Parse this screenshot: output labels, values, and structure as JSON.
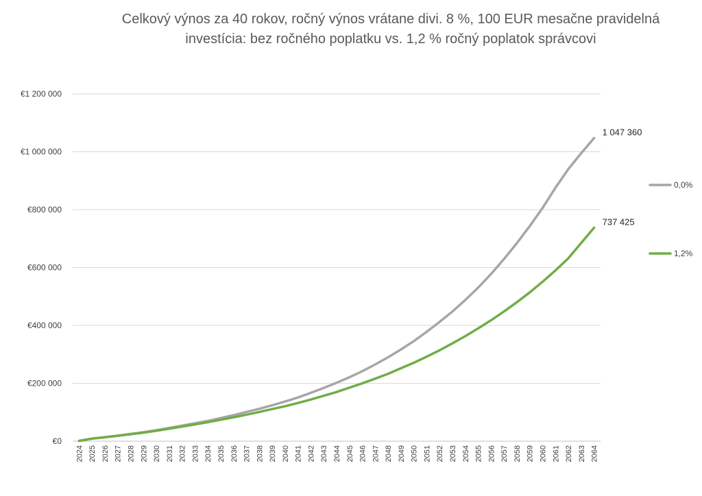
{
  "chart_data": {
    "type": "line",
    "title": "Celkový výnos za 40 rokov, ročný výnos vrátane divi. 8 %, 100 EUR mesačne pravidelná investícia: bez ročného poplatku vs. 1,2 % ročný poplatok správcovi",
    "xlabel": "",
    "ylabel": "",
    "ylim": [
      0,
      1200000
    ],
    "yticks": [
      0,
      200000,
      400000,
      600000,
      800000,
      1000000,
      1200000
    ],
    "ytick_labels": [
      "€0",
      "€200 000",
      "€400 000",
      "€600 000",
      "€800 000",
      "€1 000 000",
      "€1 200 000"
    ],
    "grid": "horizontal",
    "legend_position": "right",
    "x": [
      "2024",
      "2025",
      "2026",
      "2027",
      "2028",
      "2029",
      "2030",
      "2031",
      "2032",
      "2033",
      "2034",
      "2035",
      "2036",
      "2037",
      "2038",
      "2039",
      "2040",
      "2041",
      "2042",
      "2043",
      "2044",
      "2045",
      "2046",
      "2047",
      "2048",
      "2049",
      "2050",
      "2051",
      "2052",
      "2053",
      "2054",
      "2055",
      "2056",
      "2057",
      "2058",
      "2059",
      "2060",
      "2061",
      "2062",
      "2063",
      "2064"
    ],
    "series": [
      {
        "name": "0,0%",
        "color": "#a6a6a6",
        "end_label": "1 047 360",
        "values": [
          1200,
          9000,
          14000,
          19500,
          25000,
          31000,
          38000,
          46000,
          54000,
          62000,
          70000,
          80000,
          90000,
          101000,
          112000,
          124000,
          137000,
          151000,
          167000,
          184000,
          202000,
          221000,
          242000,
          265000,
          290000,
          317000,
          346000,
          378000,
          412000,
          448000,
          488000,
          531000,
          578000,
          629000,
          684000,
          743000,
          806000,
          876000,
          940000,
          995000,
          1047360
        ]
      },
      {
        "name": "1,2%",
        "color": "#70ad47",
        "end_label": "737 425",
        "values": [
          1200,
          8800,
          13500,
          18800,
          24000,
          29500,
          36000,
          43000,
          50500,
          58000,
          65500,
          74000,
          82500,
          91500,
          101000,
          111000,
          121000,
          132000,
          144000,
          157000,
          170000,
          185000,
          200000,
          216000,
          233000,
          252000,
          271000,
          292000,
          314000,
          338000,
          363000,
          390000,
          418000,
          448000,
          480000,
          514000,
          551000,
          590000,
          632000,
          685000,
          737425
        ]
      }
    ]
  }
}
